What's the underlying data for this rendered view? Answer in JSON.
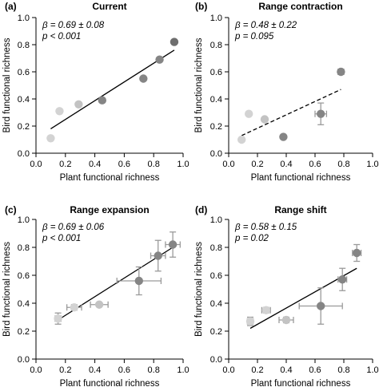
{
  "colors": {
    "axis": "#000000",
    "regression_line": "#000000",
    "point_lightest": "#d3d3d3",
    "point_light": "#c3c3c3",
    "point_mid": "#a3a3a3",
    "point_dark": "#858585",
    "point_darkest": "#6e6e6e",
    "errorbar": "#9a9a9a"
  },
  "chart_data": [
    {
      "type": "scatter",
      "panel_label": "(a)",
      "title": "Current",
      "xlabel": "Plant functional richness",
      "ylabel": "Bird functional richness",
      "stat_beta": "β = 0.69 ± 0.08",
      "stat_p": "p < 0.001",
      "xlim": [
        0,
        1.0
      ],
      "ylim": [
        0,
        1.0
      ],
      "xticks": [
        "0.0",
        "0.2",
        "0.4",
        "0.6",
        "0.8",
        "1.0"
      ],
      "yticks": [
        "0.0",
        "0.2",
        "0.4",
        "0.6",
        "0.8",
        "1.0"
      ],
      "points": [
        {
          "x": 0.1,
          "y": 0.11,
          "tone": "point_lightest"
        },
        {
          "x": 0.16,
          "y": 0.31,
          "tone": "point_lightest"
        },
        {
          "x": 0.29,
          "y": 0.36,
          "tone": "point_light"
        },
        {
          "x": 0.45,
          "y": 0.39,
          "tone": "point_dark"
        },
        {
          "x": 0.73,
          "y": 0.55,
          "tone": "point_dark"
        },
        {
          "x": 0.84,
          "y": 0.69,
          "tone": "point_dark"
        },
        {
          "x": 0.94,
          "y": 0.82,
          "tone": "point_darkest"
        }
      ],
      "trend": {
        "x0": 0.1,
        "y0": 0.18,
        "x1": 0.94,
        "y1": 0.76,
        "style": "solid"
      }
    },
    {
      "type": "scatter",
      "panel_label": "(b)",
      "title": "Range contraction",
      "xlabel": "Plant functional richness",
      "ylabel": "Bird functional richness",
      "stat_beta": "β = 0.48 ± 0.22",
      "stat_p": "p = 0.095",
      "xlim": [
        0,
        1.0
      ],
      "ylim": [
        0,
        1.0
      ],
      "xticks": [
        "0.0",
        "0.2",
        "0.4",
        "0.6",
        "0.8",
        "1.0"
      ],
      "yticks": [
        "0.0",
        "0.2",
        "0.4",
        "0.6",
        "0.8",
        "1.0"
      ],
      "points": [
        {
          "x": 0.09,
          "y": 0.1,
          "tone": "point_lightest"
        },
        {
          "x": 0.14,
          "y": 0.29,
          "tone": "point_lightest"
        },
        {
          "x": 0.25,
          "y": 0.25,
          "tone": "point_light"
        },
        {
          "x": 0.38,
          "y": 0.12,
          "tone": "point_dark"
        },
        {
          "x": 0.64,
          "y": 0.29,
          "tone": "point_dark",
          "xerr": 0.04,
          "yerr": 0.08
        },
        {
          "x": 0.78,
          "y": 0.6,
          "tone": "point_dark",
          "xerr": 0.02,
          "yerr": 0.02
        }
      ],
      "trend": {
        "x0": 0.09,
        "y0": 0.13,
        "x1": 0.78,
        "y1": 0.47,
        "style": "dashed"
      }
    },
    {
      "type": "scatter",
      "panel_label": "(c)",
      "title": "Range expansion",
      "xlabel": "Plant functional richness",
      "ylabel": "Bird functional richness",
      "stat_beta": "β = 0.69 ± 0.06",
      "stat_p": "p < 0.001",
      "xlim": [
        0,
        1.0
      ],
      "ylim": [
        0,
        1.0
      ],
      "xticks": [
        "0.0",
        "0.2",
        "0.4",
        "0.6",
        "0.8",
        "1.0"
      ],
      "yticks": [
        "0.0",
        "0.2",
        "0.4",
        "0.6",
        "0.8",
        "1.0"
      ],
      "points": [
        {
          "x": 0.15,
          "y": 0.29,
          "tone": "point_lightest",
          "xerr": 0.02,
          "yerr": 0.04
        },
        {
          "x": 0.26,
          "y": 0.37,
          "tone": "point_lightest",
          "xerr": 0.05,
          "yerr": 0.02
        },
        {
          "x": 0.43,
          "y": 0.39,
          "tone": "point_light",
          "xerr": 0.06,
          "yerr": 0.01
        },
        {
          "x": 0.7,
          "y": 0.56,
          "tone": "point_dark",
          "xerr": 0.15,
          "yerr": 0.1
        },
        {
          "x": 0.83,
          "y": 0.74,
          "tone": "point_dark",
          "xerr": 0.05,
          "yerr": 0.11
        },
        {
          "x": 0.93,
          "y": 0.82,
          "tone": "point_dark",
          "xerr": 0.05,
          "yerr": 0.09
        }
      ],
      "trend": {
        "x0": 0.15,
        "y0": 0.28,
        "x1": 0.93,
        "y1": 0.8,
        "style": "solid"
      }
    },
    {
      "type": "scatter",
      "panel_label": "(d)",
      "title": "Range shift",
      "xlabel": "Plant functional richness",
      "ylabel": "Bird functional richness",
      "stat_beta": "β = 0.58 ± 0.15",
      "stat_p": "p = 0.02",
      "xlim": [
        0,
        1.0
      ],
      "ylim": [
        0,
        1.0
      ],
      "xticks": [
        "0.0",
        "0.2",
        "0.4",
        "0.6",
        "0.8",
        "1.0"
      ],
      "yticks": [
        "0.0",
        "0.2",
        "0.4",
        "0.6",
        "0.8",
        "1.0"
      ],
      "points": [
        {
          "x": 0.15,
          "y": 0.27,
          "tone": "point_lightest",
          "xerr": 0.02,
          "yerr": 0.03
        },
        {
          "x": 0.26,
          "y": 0.35,
          "tone": "point_lightest",
          "xerr": 0.03,
          "yerr": 0.02
        },
        {
          "x": 0.4,
          "y": 0.28,
          "tone": "point_light",
          "xerr": 0.05,
          "yerr": 0.02
        },
        {
          "x": 0.64,
          "y": 0.38,
          "tone": "point_dark",
          "xerr": 0.15,
          "yerr": 0.13
        },
        {
          "x": 0.79,
          "y": 0.57,
          "tone": "point_dark",
          "xerr": 0.03,
          "yerr": 0.08
        },
        {
          "x": 0.89,
          "y": 0.76,
          "tone": "point_dark",
          "xerr": 0.03,
          "yerr": 0.06
        }
      ],
      "trend": {
        "x0": 0.15,
        "y0": 0.22,
        "x1": 0.89,
        "y1": 0.65,
        "style": "solid"
      }
    }
  ]
}
